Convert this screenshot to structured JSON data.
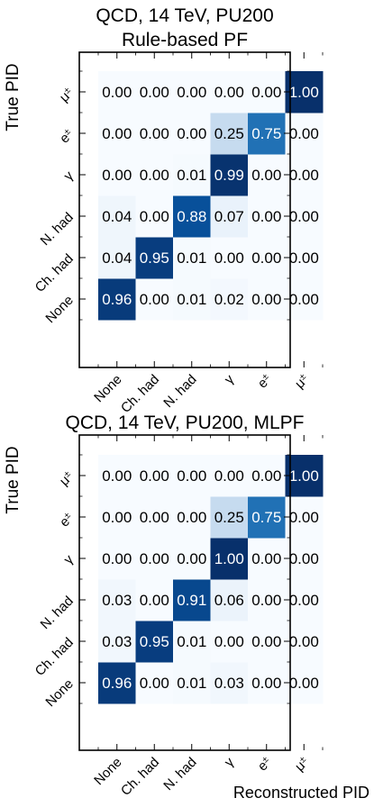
{
  "chart_data": [
    {
      "type": "heatmap",
      "title": "QCD, 14 TeV, PU200",
      "subtitle": "Rule-based PF",
      "xlabel": "",
      "ylabel": "True PID",
      "x_categories": [
        "None",
        "Ch. had",
        "N. had",
        "γ",
        "e±",
        "μ±"
      ],
      "y_categories": [
        "None",
        "Ch. had",
        "N. had",
        "γ",
        "e±",
        "μ±"
      ],
      "value_range": [
        0,
        1
      ],
      "colormap": "Blues",
      "values": [
        [
          0.96,
          0.0,
          0.01,
          0.02,
          0.0,
          0.0
        ],
        [
          0.04,
          0.95,
          0.01,
          0.0,
          0.0,
          0.0
        ],
        [
          0.04,
          0.0,
          0.88,
          0.07,
          0.0,
          0.0
        ],
        [
          0.0,
          0.0,
          0.01,
          0.99,
          0.0,
          0.0
        ],
        [
          0.0,
          0.0,
          0.0,
          0.25,
          0.75,
          0.0
        ],
        [
          0.0,
          0.0,
          0.0,
          0.0,
          0.0,
          1.0
        ]
      ]
    },
    {
      "type": "heatmap",
      "title": "QCD, 14 TeV, PU200, MLPF",
      "subtitle": "",
      "xlabel": "Reconstructed PID",
      "ylabel": "True PID",
      "x_categories": [
        "None",
        "Ch. had",
        "N. had",
        "γ",
        "e±",
        "μ±"
      ],
      "y_categories": [
        "None",
        "Ch. had",
        "N. had",
        "γ",
        "e±",
        "μ±"
      ],
      "value_range": [
        0,
        1
      ],
      "colormap": "Blues",
      "values": [
        [
          0.96,
          0.0,
          0.01,
          0.03,
          0.0,
          0.0
        ],
        [
          0.03,
          0.95,
          0.01,
          0.0,
          0.0,
          0.0
        ],
        [
          0.03,
          0.0,
          0.91,
          0.06,
          0.0,
          0.0
        ],
        [
          0.0,
          0.0,
          0.0,
          1.0,
          0.0,
          0.0
        ],
        [
          0.0,
          0.0,
          0.0,
          0.25,
          0.75,
          0.0
        ],
        [
          0.0,
          0.0,
          0.0,
          0.0,
          0.0,
          1.0
        ]
      ]
    }
  ]
}
